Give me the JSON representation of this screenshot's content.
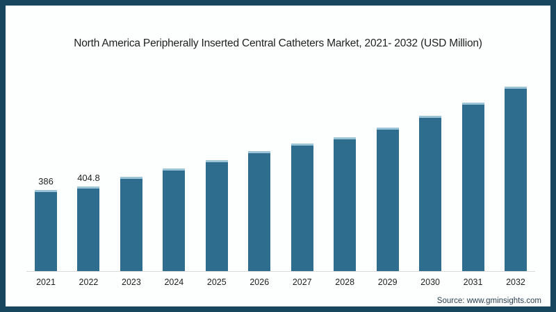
{
  "colors": {
    "frame_border": "#17465e",
    "background": "#fdfefe",
    "bar": "#2e6d8e",
    "bar_highlight": "#9cc4d8",
    "axis_line": "#d9d9d9",
    "text": "#1f1f1f",
    "source_text": "#2c3e50"
  },
  "chart_data": {
    "type": "bar",
    "title": "North America Peripherally Inserted Central Catheters Market, 2021- 2032 (USD Million)",
    "categories": [
      "2021",
      "2022",
      "2023",
      "2024",
      "2025",
      "2026",
      "2027",
      "2028",
      "2029",
      "2030",
      "2031",
      "2032"
    ],
    "values": [
      386,
      404.8,
      450,
      490,
      530,
      572,
      609,
      639,
      685,
      741,
      804,
      880
    ],
    "data_labels": [
      "386",
      "404.8",
      "",
      "",
      "",
      "",
      "",
      "",
      "",
      "",
      "",
      ""
    ],
    "xlabel": "",
    "ylabel": "",
    "unit": "USD Million",
    "ylim": [
      0,
      900
    ],
    "grid": false,
    "legend": null,
    "y_axis_visible": false,
    "source": "Source: www.gminsights.com"
  }
}
